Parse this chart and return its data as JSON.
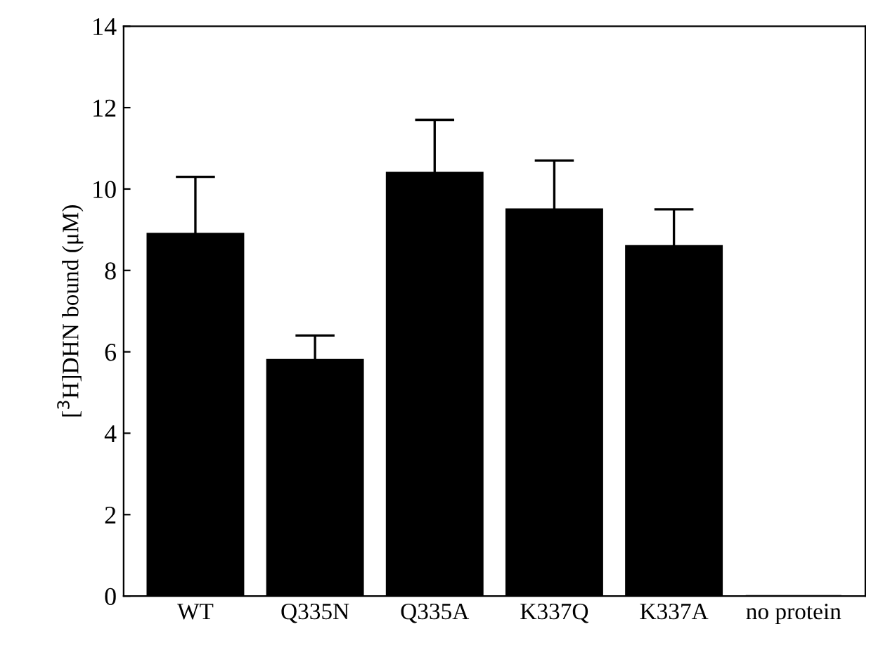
{
  "chart_data": {
    "type": "bar",
    "ylabel": "[$^{3}$H]DHN bound (μM)",
    "categories": [
      "WT",
      "Q335N",
      "Q335A",
      "K337Q",
      "K337A",
      "no protein"
    ],
    "values": [
      8.9,
      5.8,
      10.4,
      9.5,
      8.6,
      0
    ],
    "errors": [
      1.4,
      0.6,
      1.3,
      1.2,
      0.9,
      null
    ],
    "color": "#000000",
    "ylim": [
      0,
      14
    ],
    "yticks": [
      0,
      2,
      4,
      6,
      8,
      10,
      12,
      14
    ],
    "grid": false,
    "legend": false
  }
}
